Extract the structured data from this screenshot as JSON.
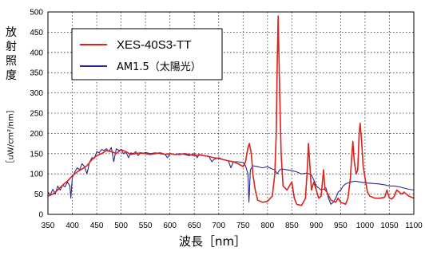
{
  "chart_data": {
    "type": "line",
    "xlabel": "波長［nm］",
    "ylabel_chars": [
      "放",
      "射",
      "照",
      "度"
    ],
    "ylabel_unit": "［uW/cm²/nm］",
    "xlim": [
      350,
      1100
    ],
    "ylim": [
      0,
      500
    ],
    "x_ticks": [
      350,
      400,
      450,
      500,
      550,
      600,
      650,
      700,
      750,
      800,
      850,
      900,
      950,
      1000,
      1050,
      1100
    ],
    "y_ticks": [
      0,
      50,
      100,
      150,
      200,
      250,
      300,
      350,
      400,
      450,
      500
    ],
    "grid": true,
    "legend_position": "top-left",
    "series": [
      {
        "name": "XES-40S3-TT",
        "color": "#e0201b",
        "points": [
          [
            350,
            45
          ],
          [
            360,
            50
          ],
          [
            370,
            60
          ],
          [
            380,
            72
          ],
          [
            390,
            82
          ],
          [
            400,
            95
          ],
          [
            410,
            105
          ],
          [
            420,
            112
          ],
          [
            430,
            120
          ],
          [
            440,
            135
          ],
          [
            450,
            145
          ],
          [
            460,
            150
          ],
          [
            470,
            158
          ],
          [
            480,
            155
          ],
          [
            490,
            150
          ],
          [
            500,
            160
          ],
          [
            510,
            155
          ],
          [
            520,
            148
          ],
          [
            530,
            150
          ],
          [
            540,
            152
          ],
          [
            550,
            150
          ],
          [
            560,
            148
          ],
          [
            570,
            150
          ],
          [
            580,
            152
          ],
          [
            590,
            148
          ],
          [
            600,
            150
          ],
          [
            610,
            148
          ],
          [
            620,
            148
          ],
          [
            630,
            150
          ],
          [
            640,
            148
          ],
          [
            650,
            145
          ],
          [
            660,
            147
          ],
          [
            670,
            145
          ],
          [
            680,
            143
          ],
          [
            690,
            140
          ],
          [
            700,
            138
          ],
          [
            710,
            135
          ],
          [
            720,
            132
          ],
          [
            730,
            130
          ],
          [
            740,
            125
          ],
          [
            750,
            118
          ],
          [
            755,
            130
          ],
          [
            760,
            165
          ],
          [
            763,
            175
          ],
          [
            767,
            150
          ],
          [
            770,
            100
          ],
          [
            775,
            60
          ],
          [
            780,
            35
          ],
          [
            790,
            30
          ],
          [
            800,
            32
          ],
          [
            810,
            45
          ],
          [
            815,
            100
          ],
          [
            818,
            200
          ],
          [
            820,
            370
          ],
          [
            822,
            490
          ],
          [
            825,
            300
          ],
          [
            828,
            150
          ],
          [
            832,
            70
          ],
          [
            840,
            60
          ],
          [
            850,
            80
          ],
          [
            855,
            40
          ],
          [
            860,
            25
          ],
          [
            870,
            22
          ],
          [
            878,
            40
          ],
          [
            882,
            120
          ],
          [
            884,
            175
          ],
          [
            887,
            120
          ],
          [
            890,
            60
          ],
          [
            895,
            80
          ],
          [
            900,
            60
          ],
          [
            905,
            40
          ],
          [
            910,
            45
          ],
          [
            915,
            110
          ],
          [
            918,
            60
          ],
          [
            922,
            55
          ],
          [
            930,
            35
          ],
          [
            940,
            30
          ],
          [
            945,
            40
          ],
          [
            950,
            30
          ],
          [
            960,
            25
          ],
          [
            965,
            40
          ],
          [
            970,
            90
          ],
          [
            972,
            130
          ],
          [
            975,
            180
          ],
          [
            978,
            130
          ],
          [
            982,
            100
          ],
          [
            985,
            110
          ],
          [
            988,
            200
          ],
          [
            990,
            225
          ],
          [
            993,
            180
          ],
          [
            996,
            120
          ],
          [
            1000,
            90
          ],
          [
            1005,
            55
          ],
          [
            1010,
            45
          ],
          [
            1020,
            40
          ],
          [
            1030,
            40
          ],
          [
            1040,
            42
          ],
          [
            1045,
            60
          ],
          [
            1050,
            40
          ],
          [
            1055,
            38
          ],
          [
            1060,
            45
          ],
          [
            1065,
            60
          ],
          [
            1070,
            55
          ],
          [
            1075,
            50
          ],
          [
            1080,
            55
          ],
          [
            1090,
            45
          ],
          [
            1100,
            40
          ]
        ]
      },
      {
        "name": "AM1.5（太陽光）",
        "color": "#2a2a8c",
        "points": [
          [
            350,
            55
          ],
          [
            355,
            48
          ],
          [
            360,
            62
          ],
          [
            365,
            50
          ],
          [
            370,
            70
          ],
          [
            375,
            60
          ],
          [
            380,
            72
          ],
          [
            385,
            68
          ],
          [
            390,
            80
          ],
          [
            395,
            70
          ],
          [
            397,
            40
          ],
          [
            400,
            90
          ],
          [
            405,
            105
          ],
          [
            410,
            115
          ],
          [
            415,
            110
          ],
          [
            420,
            125
          ],
          [
            425,
            118
          ],
          [
            430,
            100
          ],
          [
            435,
            128
          ],
          [
            440,
            140
          ],
          [
            445,
            138
          ],
          [
            450,
            155
          ],
          [
            455,
            152
          ],
          [
            460,
            160
          ],
          [
            465,
            158
          ],
          [
            470,
            162
          ],
          [
            475,
            155
          ],
          [
            480,
            165
          ],
          [
            485,
            130
          ],
          [
            490,
            162
          ],
          [
            495,
            158
          ],
          [
            500,
            160
          ],
          [
            505,
            150
          ],
          [
            510,
            155
          ],
          [
            515,
            140
          ],
          [
            520,
            152
          ],
          [
            525,
            150
          ],
          [
            530,
            155
          ],
          [
            535,
            145
          ],
          [
            540,
            152
          ],
          [
            545,
            150
          ],
          [
            550,
            153
          ],
          [
            560,
            150
          ],
          [
            570,
            152
          ],
          [
            580,
            150
          ],
          [
            590,
            148
          ],
          [
            595,
            140
          ],
          [
            600,
            150
          ],
          [
            610,
            148
          ],
          [
            620,
            150
          ],
          [
            630,
            148
          ],
          [
            640,
            145
          ],
          [
            650,
            150
          ],
          [
            656,
            140
          ],
          [
            660,
            148
          ],
          [
            670,
            145
          ],
          [
            680,
            143
          ],
          [
            686,
            130
          ],
          [
            690,
            135
          ],
          [
            700,
            140
          ],
          [
            710,
            135
          ],
          [
            720,
            132
          ],
          [
            725,
            115
          ],
          [
            730,
            130
          ],
          [
            740,
            130
          ],
          [
            750,
            128
          ],
          [
            755,
            120
          ],
          [
            760,
            100
          ],
          [
            762,
            30
          ],
          [
            765,
            110
          ],
          [
            770,
            120
          ],
          [
            780,
            118
          ],
          [
            790,
            115
          ],
          [
            800,
            118
          ],
          [
            810,
            112
          ],
          [
            815,
            110
          ],
          [
            820,
            100
          ],
          [
            825,
            110
          ],
          [
            830,
            112
          ],
          [
            840,
            110
          ],
          [
            850,
            108
          ],
          [
            860,
            105
          ],
          [
            870,
            100
          ],
          [
            880,
            102
          ],
          [
            890,
            98
          ],
          [
            895,
            85
          ],
          [
            900,
            70
          ],
          [
            910,
            60
          ],
          [
            920,
            65
          ],
          [
            925,
            40
          ],
          [
            930,
            25
          ],
          [
            935,
            30
          ],
          [
            940,
            40
          ],
          [
            945,
            55
          ],
          [
            950,
            60
          ],
          [
            955,
            70
          ],
          [
            960,
            75
          ],
          [
            970,
            80
          ],
          [
            980,
            82
          ],
          [
            990,
            80
          ],
          [
            1000,
            78
          ],
          [
            1010,
            77
          ],
          [
            1020,
            76
          ],
          [
            1030,
            75
          ],
          [
            1040,
            73
          ],
          [
            1050,
            70
          ],
          [
            1060,
            70
          ],
          [
            1070,
            68
          ],
          [
            1080,
            65
          ],
          [
            1090,
            62
          ],
          [
            1100,
            60
          ]
        ]
      }
    ]
  }
}
